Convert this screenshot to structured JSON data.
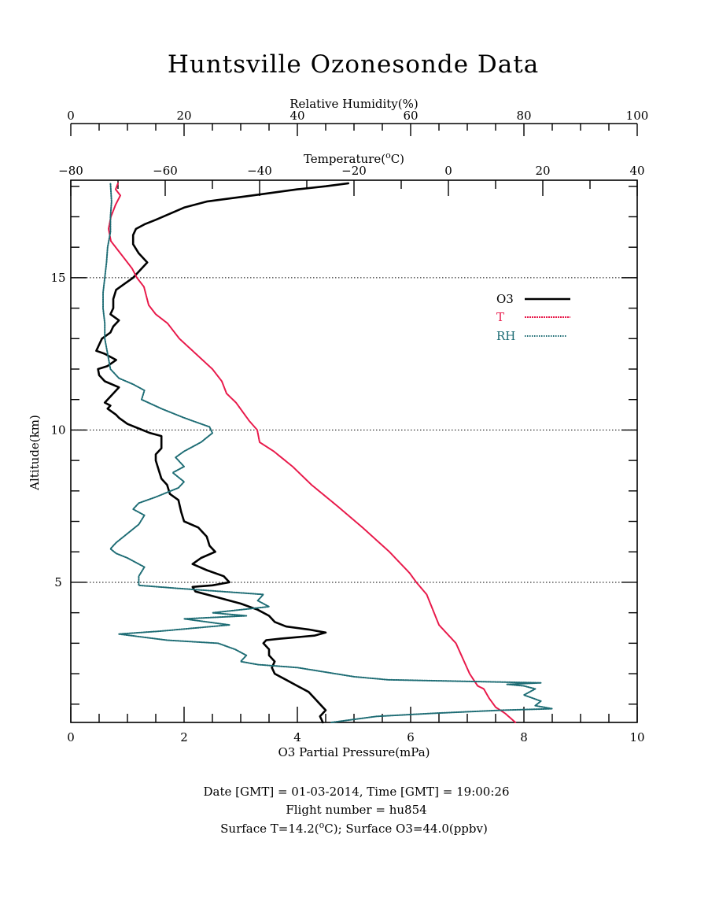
{
  "chart_data": {
    "type": "line",
    "title": "Huntsville Ozonesonde Data",
    "ylabel": "Altitude(km)",
    "ylim": [
      0.4,
      18.2
    ],
    "y_ticks": [
      5,
      10,
      15
    ],
    "y_minor_step": 1,
    "grid": "dotted horizontal lines at 5, 10, 15 km",
    "legend_position": "right",
    "axes": {
      "ozone": {
        "label": "O3 Partial Pressure(mPa)",
        "position": "bottom",
        "range": [
          0,
          10
        ],
        "ticks": [
          0,
          2,
          4,
          6,
          8,
          10
        ],
        "minor_step": 0.5
      },
      "temperature": {
        "label": "Temperature(",
        "label_sup": "o",
        "label_end": "C)",
        "position": "top-inner",
        "range": [
          -80,
          40
        ],
        "ticks": [
          -80,
          -60,
          -40,
          -20,
          0,
          20,
          40
        ],
        "minor_step": 10
      },
      "humidity": {
        "label": "Relative Humidity(%)",
        "position": "top-outer",
        "range": [
          0,
          100
        ],
        "ticks": [
          0,
          20,
          40,
          60,
          80,
          100
        ],
        "minor_step": 5
      }
    },
    "series": [
      {
        "name": "O3",
        "axis": "ozone",
        "color": "#000000",
        "style": "solid",
        "points": [
          [
            4.45,
            0.4
          ],
          [
            4.4,
            0.6
          ],
          [
            4.5,
            0.8
          ],
          [
            4.4,
            1.0
          ],
          [
            4.3,
            1.2
          ],
          [
            4.2,
            1.4
          ],
          [
            4.0,
            1.6
          ],
          [
            3.8,
            1.8
          ],
          [
            3.6,
            2.0
          ],
          [
            3.55,
            2.2
          ],
          [
            3.6,
            2.4
          ],
          [
            3.5,
            2.6
          ],
          [
            3.5,
            2.8
          ],
          [
            3.4,
            3.0
          ],
          [
            3.45,
            3.1
          ],
          [
            3.7,
            3.15
          ],
          [
            4.3,
            3.25
          ],
          [
            4.5,
            3.35
          ],
          [
            4.2,
            3.45
          ],
          [
            3.8,
            3.55
          ],
          [
            3.6,
            3.7
          ],
          [
            3.5,
            3.9
          ],
          [
            3.3,
            4.1
          ],
          [
            3.0,
            4.3
          ],
          [
            2.6,
            4.5
          ],
          [
            2.2,
            4.7
          ],
          [
            2.15,
            4.85
          ],
          [
            2.5,
            4.9
          ],
          [
            2.8,
            5.0
          ],
          [
            2.7,
            5.2
          ],
          [
            2.4,
            5.4
          ],
          [
            2.15,
            5.6
          ],
          [
            2.3,
            5.8
          ],
          [
            2.55,
            6.0
          ],
          [
            2.45,
            6.2
          ],
          [
            2.4,
            6.5
          ],
          [
            2.25,
            6.8
          ],
          [
            2.0,
            7.0
          ],
          [
            1.95,
            7.3
          ],
          [
            1.9,
            7.7
          ],
          [
            1.75,
            7.9
          ],
          [
            1.7,
            8.2
          ],
          [
            1.6,
            8.4
          ],
          [
            1.55,
            8.7
          ],
          [
            1.5,
            9.0
          ],
          [
            1.5,
            9.2
          ],
          [
            1.6,
            9.4
          ],
          [
            1.6,
            9.6
          ],
          [
            1.6,
            9.8
          ],
          [
            1.4,
            9.9
          ],
          [
            1.2,
            10.05
          ],
          [
            1.0,
            10.2
          ],
          [
            0.85,
            10.4
          ],
          [
            0.8,
            10.5
          ],
          [
            0.65,
            10.7
          ],
          [
            0.7,
            10.8
          ],
          [
            0.6,
            10.9
          ],
          [
            0.75,
            11.2
          ],
          [
            0.85,
            11.4
          ],
          [
            0.6,
            11.6
          ],
          [
            0.5,
            11.8
          ],
          [
            0.48,
            12.0
          ],
          [
            0.65,
            12.1
          ],
          [
            0.8,
            12.3
          ],
          [
            0.6,
            12.5
          ],
          [
            0.45,
            12.6
          ],
          [
            0.5,
            12.8
          ],
          [
            0.55,
            13.0
          ],
          [
            0.7,
            13.2
          ],
          [
            0.75,
            13.4
          ],
          [
            0.85,
            13.6
          ],
          [
            0.7,
            13.8
          ],
          [
            0.75,
            14.0
          ],
          [
            0.75,
            14.3
          ],
          [
            0.8,
            14.6
          ],
          [
            0.95,
            14.8
          ],
          [
            1.1,
            15.0
          ],
          [
            1.2,
            15.2
          ],
          [
            1.35,
            15.5
          ],
          [
            1.2,
            15.8
          ],
          [
            1.1,
            16.1
          ],
          [
            1.1,
            16.4
          ],
          [
            1.15,
            16.6
          ],
          [
            1.3,
            16.75
          ],
          [
            1.5,
            16.9
          ],
          [
            1.75,
            17.1
          ],
          [
            2.0,
            17.3
          ],
          [
            2.4,
            17.5
          ],
          [
            3.2,
            17.7
          ],
          [
            4.0,
            17.9
          ],
          [
            4.5,
            18.0
          ],
          [
            4.9,
            18.1
          ]
        ]
      },
      {
        "name": "T",
        "axis": "temperature",
        "color": "#e8194a",
        "style": "dashed",
        "points": [
          [
            14.2,
            0.4
          ],
          [
            12.0,
            0.7
          ],
          [
            10.0,
            0.9
          ],
          [
            8.6,
            1.2
          ],
          [
            7.5,
            1.5
          ],
          [
            6.2,
            1.6
          ],
          [
            4.5,
            2.0
          ],
          [
            1.6,
            3.0
          ],
          [
            -2.0,
            3.6
          ],
          [
            -4.6,
            4.6
          ],
          [
            -6.8,
            5.0
          ],
          [
            -8.2,
            5.3
          ],
          [
            -12.5,
            6.0
          ],
          [
            -18.2,
            6.8
          ],
          [
            -23.5,
            7.5
          ],
          [
            -29.0,
            8.2
          ],
          [
            -33.0,
            8.8
          ],
          [
            -37.0,
            9.3
          ],
          [
            -40.0,
            9.6
          ],
          [
            -40.5,
            10.0
          ],
          [
            -42.2,
            10.3
          ],
          [
            -45.0,
            10.9
          ],
          [
            -47.0,
            11.2
          ],
          [
            -48.0,
            11.6
          ],
          [
            -50.0,
            12.0
          ],
          [
            -53.5,
            12.5
          ],
          [
            -57.0,
            13.0
          ],
          [
            -59.5,
            13.5
          ],
          [
            -62.0,
            13.8
          ],
          [
            -63.5,
            14.1
          ],
          [
            -64.0,
            14.4
          ],
          [
            -64.5,
            14.7
          ],
          [
            -66.0,
            15.0
          ],
          [
            -67.0,
            15.3
          ],
          [
            -68.5,
            15.6
          ],
          [
            -70.0,
            15.9
          ],
          [
            -71.5,
            16.2
          ],
          [
            -72.0,
            16.6
          ],
          [
            -71.5,
            17.0
          ],
          [
            -70.5,
            17.4
          ],
          [
            -69.5,
            17.7
          ],
          [
            -70.5,
            17.9
          ],
          [
            -70.0,
            18.1
          ]
        ]
      },
      {
        "name": "RH",
        "axis": "humidity",
        "color": "#1d6c74",
        "style": "dotted",
        "points": [
          [
            46.0,
            0.4
          ],
          [
            54.0,
            0.6
          ],
          [
            64.0,
            0.7
          ],
          [
            76.0,
            0.8
          ],
          [
            85.0,
            0.85
          ],
          [
            82.0,
            0.95
          ],
          [
            83.0,
            1.1
          ],
          [
            80.0,
            1.3
          ],
          [
            82.0,
            1.5
          ],
          [
            80.0,
            1.6
          ],
          [
            77.0,
            1.65
          ],
          [
            83.0,
            1.7
          ],
          [
            69.0,
            1.75
          ],
          [
            56.0,
            1.8
          ],
          [
            50.0,
            1.9
          ],
          [
            45.0,
            2.05
          ],
          [
            40.0,
            2.2
          ],
          [
            33.0,
            2.3
          ],
          [
            30.0,
            2.4
          ],
          [
            31.0,
            2.6
          ],
          [
            29.0,
            2.8
          ],
          [
            26.0,
            3.0
          ],
          [
            17.0,
            3.1
          ],
          [
            8.5,
            3.3
          ],
          [
            16.0,
            3.4
          ],
          [
            28.0,
            3.6
          ],
          [
            20.0,
            3.8
          ],
          [
            31.0,
            3.9
          ],
          [
            25.0,
            4.0
          ],
          [
            35.0,
            4.2
          ],
          [
            33.0,
            4.4
          ],
          [
            34.0,
            4.6
          ],
          [
            19.0,
            4.8
          ],
          [
            12.0,
            4.9
          ],
          [
            12.0,
            5.2
          ],
          [
            13.0,
            5.5
          ],
          [
            10.0,
            5.8
          ],
          [
            8.0,
            5.95
          ],
          [
            7.0,
            6.1
          ],
          [
            8.0,
            6.3
          ],
          [
            10.0,
            6.6
          ],
          [
            12.0,
            6.9
          ],
          [
            13.0,
            7.2
          ],
          [
            11.0,
            7.4
          ],
          [
            12.0,
            7.6
          ],
          [
            15.0,
            7.8
          ],
          [
            19.0,
            8.1
          ],
          [
            20.0,
            8.3
          ],
          [
            18.0,
            8.6
          ],
          [
            20.0,
            8.8
          ],
          [
            18.5,
            9.1
          ],
          [
            20.0,
            9.3
          ],
          [
            23.0,
            9.6
          ],
          [
            25.0,
            9.9
          ],
          [
            24.5,
            10.1
          ],
          [
            20.0,
            10.4
          ],
          [
            16.0,
            10.7
          ],
          [
            12.5,
            11.0
          ],
          [
            13.0,
            11.3
          ],
          [
            11.0,
            11.5
          ],
          [
            8.5,
            11.7
          ],
          [
            7.0,
            12.0
          ],
          [
            6.5,
            12.5
          ],
          [
            6.0,
            13.0
          ],
          [
            6.0,
            13.5
          ],
          [
            5.7,
            14.0
          ],
          [
            5.7,
            14.5
          ],
          [
            6.0,
            15.0
          ],
          [
            6.3,
            15.5
          ],
          [
            6.5,
            16.0
          ],
          [
            7.0,
            16.5
          ],
          [
            7.0,
            17.0
          ],
          [
            7.2,
            17.5
          ],
          [
            7.0,
            18.1
          ]
        ]
      }
    ]
  },
  "footer": {
    "line1": "Date [GMT] = 01-03-2014,  Time [GMT] = 19:00:26",
    "line2": "Flight number = hu854",
    "line3_a": "Surface T=14.2(",
    "line3_sup": "o",
    "line3_b": "C); Surface O3=44.0(ppbv)"
  }
}
